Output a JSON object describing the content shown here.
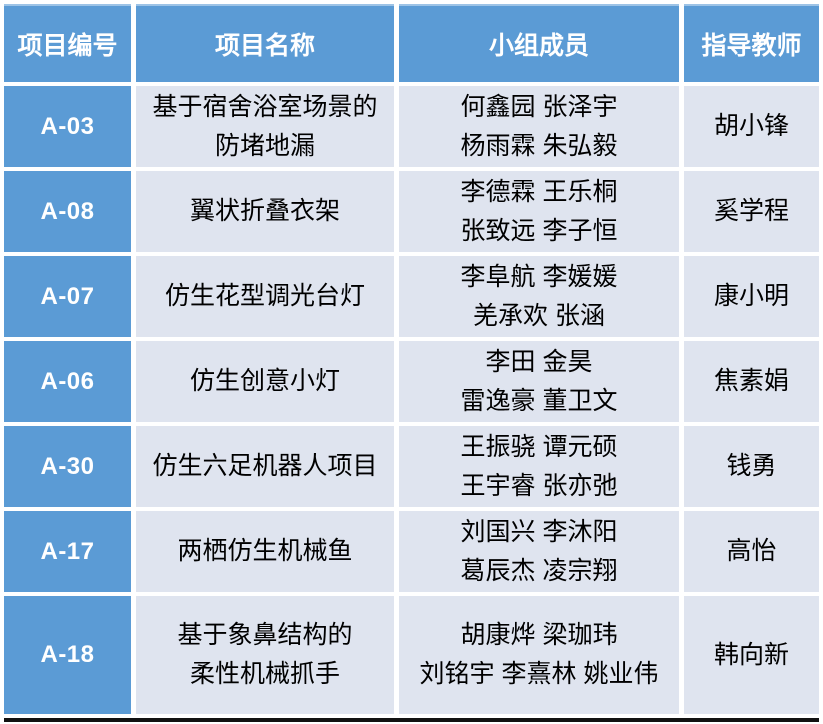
{
  "table": {
    "headers": [
      "项目编号",
      "项目名称",
      "小组成员",
      "指导教师"
    ],
    "rows": [
      {
        "id": "A-03",
        "name": "基于宿舍浴室场景的\n防堵地漏",
        "members": "何鑫园 张泽宇\n杨雨霖 朱弘毅",
        "teacher": "胡小锋"
      },
      {
        "id": "A-08",
        "name": "翼状折叠衣架",
        "members": "李德霖 王乐桐\n张致远 李子恒",
        "teacher": "奚学程"
      },
      {
        "id": "A-07",
        "name": "仿生花型调光台灯",
        "members": "李阜航 李媛媛\n羌承欢 张涵",
        "teacher": "康小明"
      },
      {
        "id": "A-06",
        "name": "仿生创意小灯",
        "members": "李田 金昊\n雷逸豪 董卫文",
        "teacher": "焦素娟"
      },
      {
        "id": "A-30",
        "name": "仿生六足机器人项目",
        "members": "王振骁 谭元硕\n王宇睿 张亦弛",
        "teacher": "钱勇"
      },
      {
        "id": "A-17",
        "name": "两栖仿生机械鱼",
        "members": "刘国兴 李沐阳\n葛辰杰 凌宗翔",
        "teacher": "高怡"
      },
      {
        "id": "A-18",
        "name": "基于象鼻结构的\n柔性机械抓手",
        "members": "胡康烨 梁珈玮\n刘铭宇 李熹林 姚业伟",
        "teacher": "韩向新"
      }
    ],
    "colors": {
      "header_bg": "#5B9BD5",
      "id_cell_bg": "#5B9BD5",
      "body_cell_bg": "#DFE4EF",
      "header_text": "#FFFFFF",
      "body_text": "#000000",
      "bottom_border": "#111111"
    }
  }
}
